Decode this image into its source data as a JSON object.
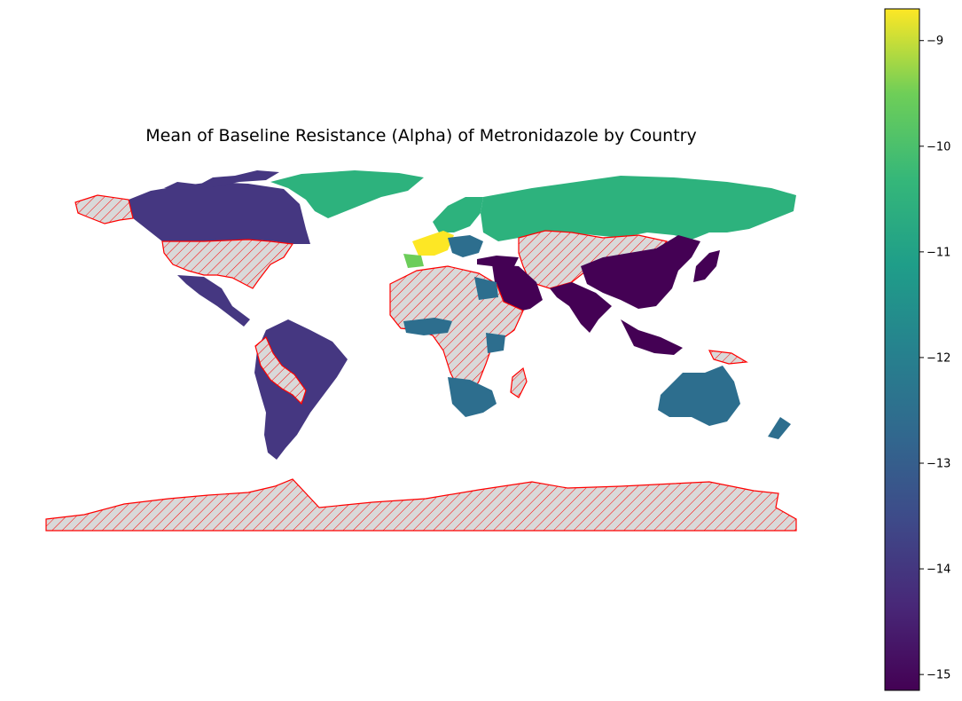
{
  "title": "Mean of Baseline Resistance (Alpha) of Metronidazole by Country",
  "colormap": "viridis",
  "missing_style": {
    "fill": "#d9d9d9",
    "edge": "#ff0000",
    "hatch": "///"
  },
  "colors": {
    "v_15": "#440154",
    "v_14": "#453781",
    "v_13": "#2d6e8e",
    "v_12": "#21918c",
    "v_11": "#2db27d",
    "v_10": "#6ccd5a",
    "v_9": "#fde725"
  },
  "colorbar": {
    "min": -15.15,
    "max": -8.7,
    "ticks": [
      -9,
      -10,
      -11,
      -12,
      -13,
      -14,
      -15
    ],
    "tick_labels": [
      "−9",
      "−10",
      "−11",
      "−12",
      "−13",
      "−14",
      "−15"
    ]
  },
  "chart_data": {
    "type": "choropleth",
    "title": "Mean of Baseline Resistance (Alpha) of Metronidazole by Country",
    "value_range": [
      -15.15,
      -8.7
    ],
    "regions": [
      {
        "region": "Canada",
        "value": -14.3
      },
      {
        "region": "Mexico / Central America",
        "value": -14.3
      },
      {
        "region": "Brazil / South America",
        "value": -14.3
      },
      {
        "region": "Greenland",
        "value": -11.2
      },
      {
        "region": "Russia",
        "value": -11.2
      },
      {
        "region": "Scandinavia",
        "value": -11.0
      },
      {
        "region": "France / Germany",
        "value": -8.8
      },
      {
        "region": "Spain",
        "value": -10.3
      },
      {
        "region": "Australia",
        "value": -13.0
      },
      {
        "region": "Southern Africa",
        "value": -13.4
      },
      {
        "region": "China",
        "value": -15.1
      },
      {
        "region": "India",
        "value": -15.1
      },
      {
        "region": "Arabian Peninsula",
        "value": -15.1
      },
      {
        "region": "Japan",
        "value": -14.6
      },
      {
        "region": "New Zealand",
        "value": -12.6
      },
      {
        "region": "United States",
        "value": null
      },
      {
        "region": "Alaska",
        "value": null
      },
      {
        "region": "Antarctica",
        "value": null
      },
      {
        "region": "Sahara / Central Africa",
        "value": null
      },
      {
        "region": "Central Asia",
        "value": null
      }
    ]
  }
}
